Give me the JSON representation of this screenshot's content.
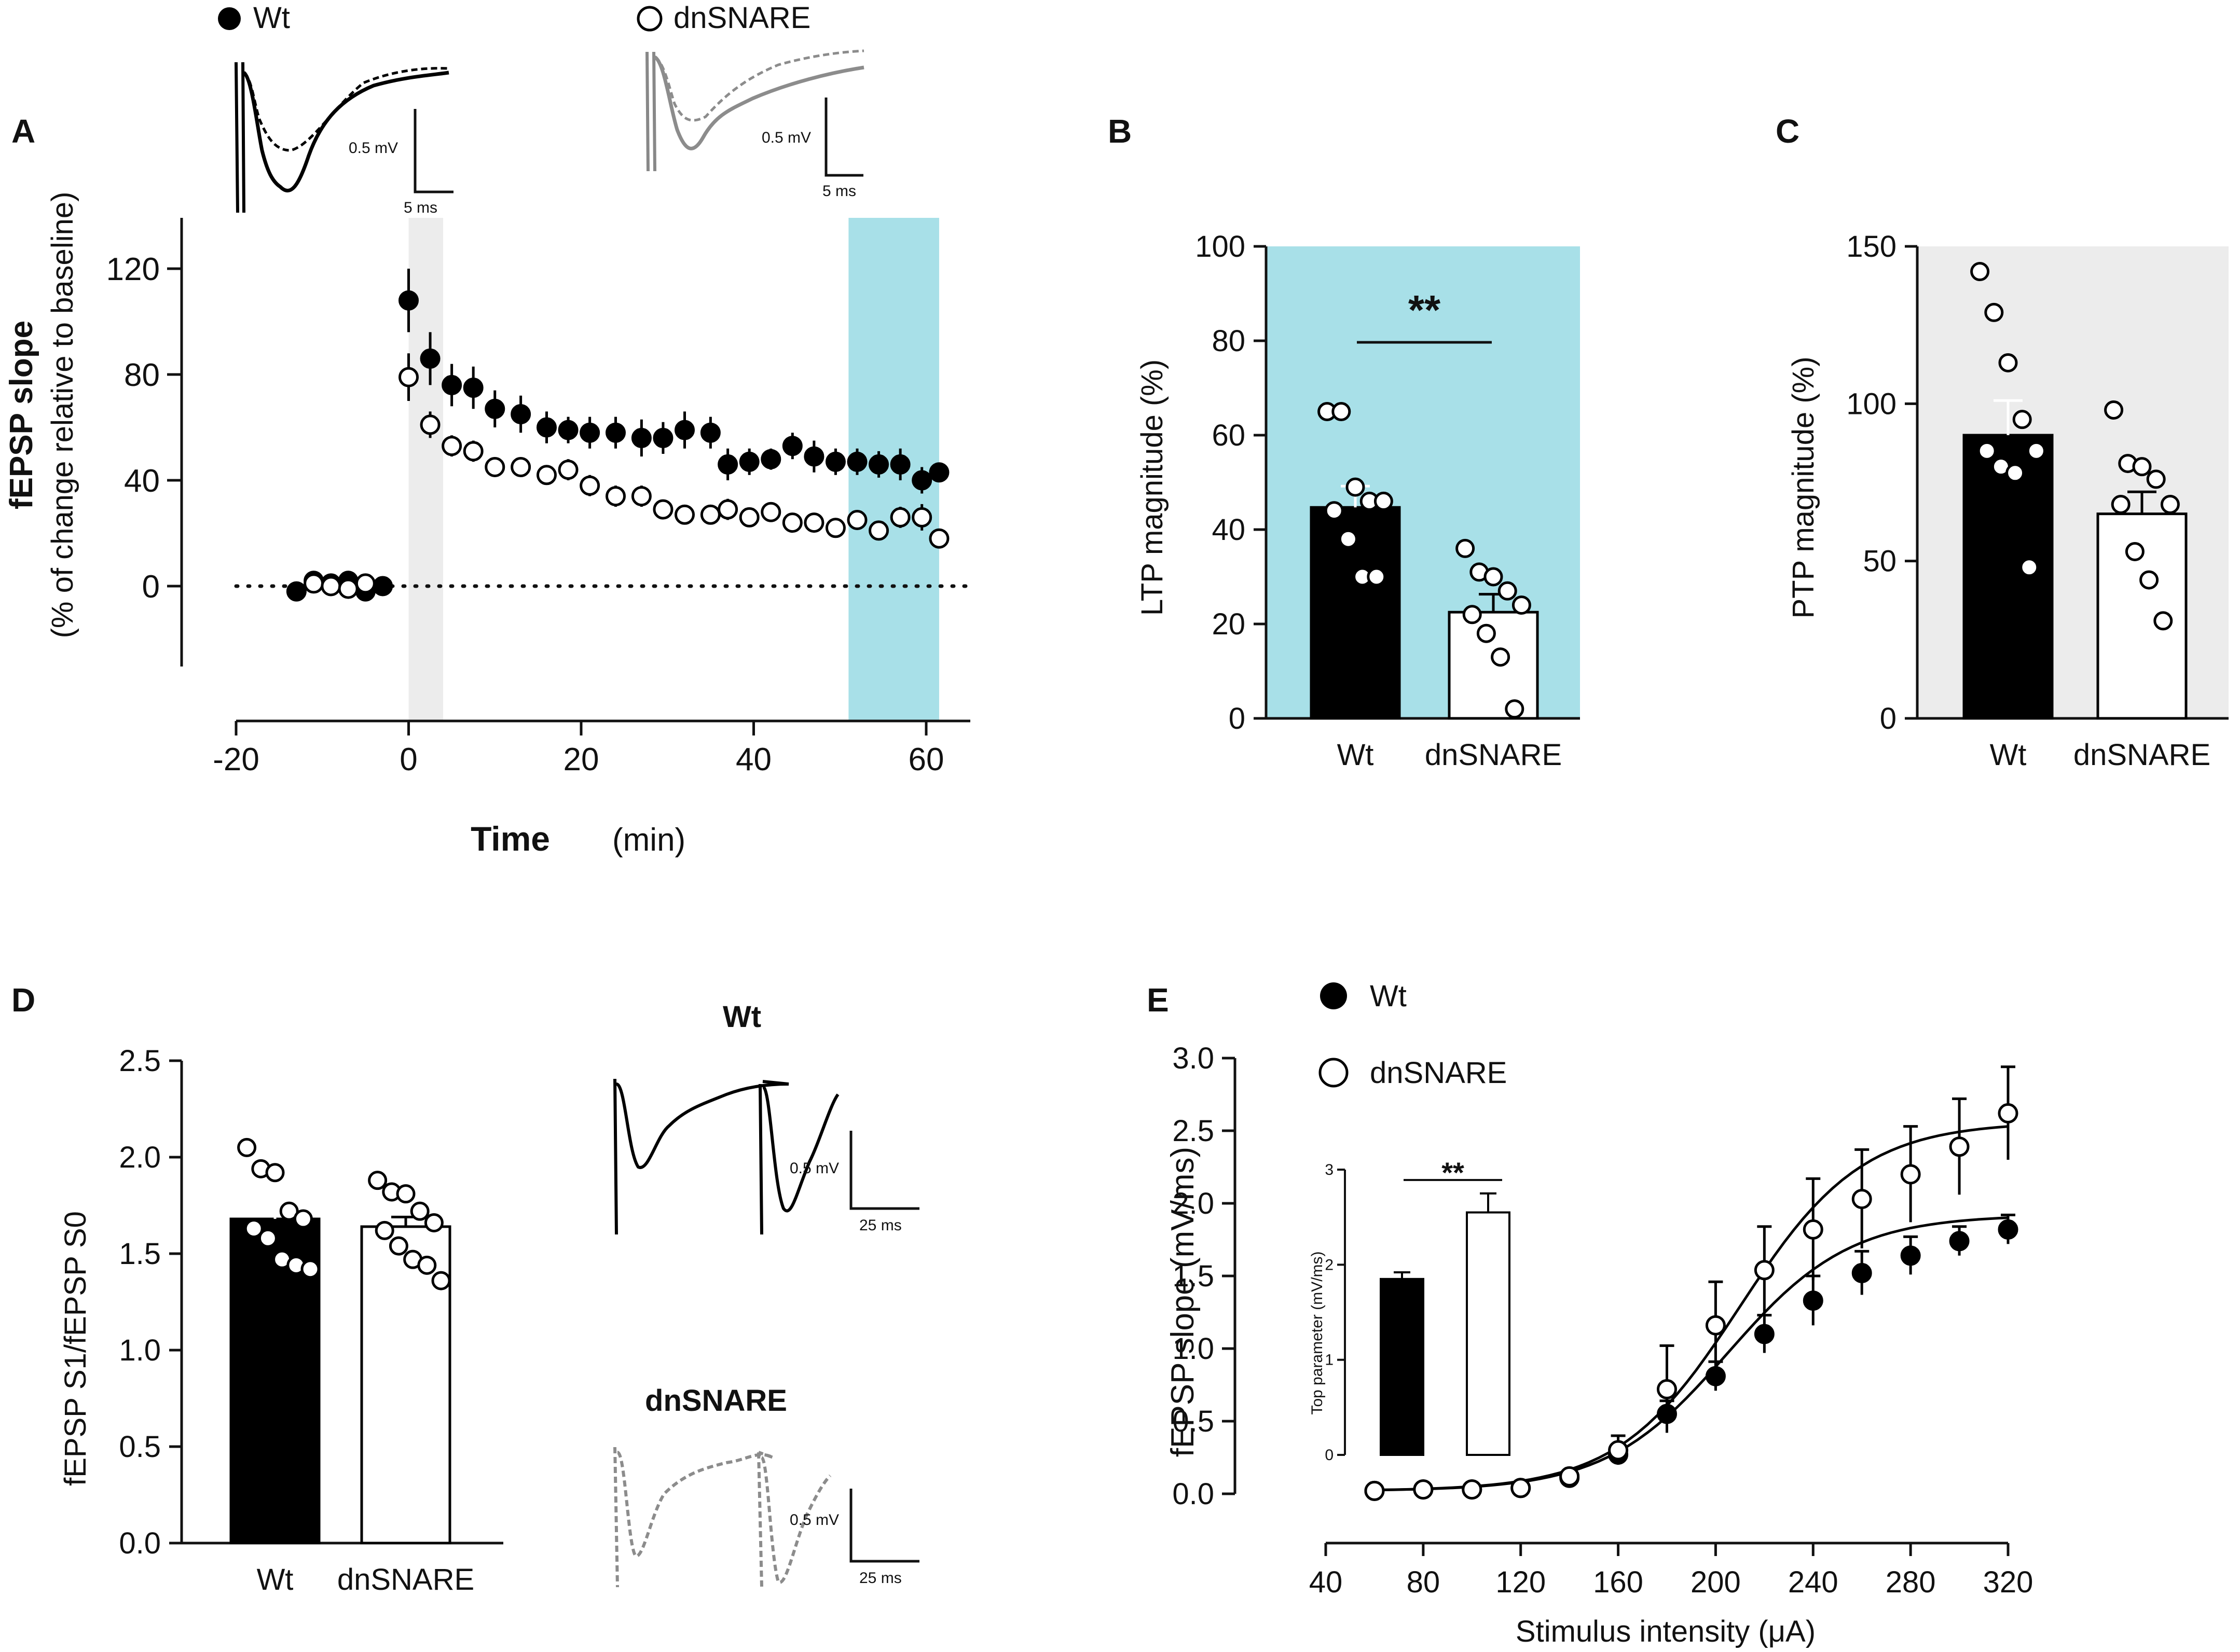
{
  "panels": {
    "A": {
      "letter": "A",
      "legend": [
        {
          "name": "Wt",
          "fill": "filled"
        },
        {
          "name": "dnSNARE",
          "fill": "open"
        }
      ],
      "trace_scale": {
        "wt_mv": "0.5 mV",
        "wt_ms": "5 ms",
        "dn_mv": "0.5 mV",
        "dn_ms": "5 ms"
      },
      "ylabel_bold": "fEPSP slope",
      "ylabel_sub": "(% of change relative to baseline)",
      "xlabel_bold": "Time",
      "xlabel_unit": "(min)",
      "x_ticks": [
        "-20",
        "0",
        "20",
        "40",
        "60"
      ],
      "y_ticks": [
        "0",
        "40",
        "80",
        "120"
      ]
    },
    "B": {
      "letter": "B",
      "ylabel": "LTP magnitude (%)",
      "significance": "**",
      "y_ticks": [
        "0",
        "20",
        "40",
        "60",
        "80",
        "100"
      ],
      "categories": [
        "Wt",
        "dnSNARE"
      ]
    },
    "C": {
      "letter": "C",
      "ylabel": "PTP magnitude (%)",
      "y_ticks": [
        "0",
        "50",
        "100",
        "150"
      ],
      "categories": [
        "Wt",
        "dnSNARE"
      ]
    },
    "D": {
      "letter": "D",
      "ylabel": "fEPSP S1/fEPSP S0",
      "y_ticks": [
        "0.0",
        "0.5",
        "1.0",
        "1.5",
        "2.0",
        "2.5"
      ],
      "categories": [
        "Wt",
        "dnSNARE"
      ],
      "trace_titles": {
        "wt": "Wt",
        "dn": "dnSNARE"
      },
      "trace_scale": {
        "wt_mv": "0.5 mV",
        "wt_ms": "25 ms",
        "dn_mv": "0.5 mV",
        "dn_ms": "25 ms"
      }
    },
    "E": {
      "letter": "E",
      "ylabel": "fEPSP slope (mV/ms)",
      "xlabel": "Stimulus intensity (μA)",
      "legend": [
        {
          "name": "Wt",
          "fill": "filled"
        },
        {
          "name": "dnSNARE",
          "fill": "open"
        }
      ],
      "x_ticks": [
        "40",
        "80",
        "120",
        "160",
        "200",
        "240",
        "280",
        "320"
      ],
      "y_ticks": [
        "0.0",
        "0.5",
        "1.0",
        "1.5",
        "2.0",
        "2.5",
        "3.0"
      ],
      "inset": {
        "ylabel": "Top parameter (mV/ms)",
        "y_ticks": [
          "0",
          "1",
          "2",
          "3"
        ],
        "significance": "**"
      }
    }
  },
  "colors": {
    "wt": "#000000",
    "dn": "#ffffff",
    "ltp_window": "#a8e0e8",
    "ptp_window": "#ececec",
    "dn_trace": "#8c8c8c"
  },
  "chart_data": [
    {
      "id": "A",
      "type": "scatter",
      "title": "",
      "xlabel": "Time (min)",
      "ylabel": "fEPSP slope (% of change relative to baseline)",
      "xlim": [
        -25,
        65
      ],
      "ylim": [
        -30,
        140
      ],
      "shaded_regions": [
        {
          "x": [
            0,
            4
          ],
          "color": "ptp_window"
        },
        {
          "x": [
            51,
            61.5
          ],
          "color": "ltp_window"
        }
      ],
      "series": [
        {
          "name": "Wt",
          "x": [
            -13,
            -11,
            -9,
            -7,
            -5,
            -3,
            0,
            2.5,
            5,
            7.5,
            10,
            13,
            16,
            18.5,
            21,
            24,
            27,
            29.5,
            32,
            35,
            37,
            39.5,
            42,
            44.5,
            47,
            49.5,
            52,
            54.5,
            57,
            59.5,
            61.5
          ],
          "y": [
            -2,
            2,
            1,
            2,
            -2,
            0,
            108,
            86,
            76,
            75,
            67,
            65,
            60,
            59,
            58,
            58,
            56,
            56,
            59,
            58,
            46,
            47,
            48,
            53,
            49,
            47,
            47,
            46,
            46,
            40,
            43
          ],
          "err": [
            1,
            1,
            1,
            1,
            1,
            1,
            12,
            10,
            8,
            8,
            7,
            7,
            6,
            5,
            6,
            6,
            7,
            6,
            7,
            6,
            6,
            5,
            4,
            5,
            6,
            5,
            5,
            5,
            6,
            5,
            3
          ]
        },
        {
          "name": "dnSNARE",
          "x": [
            -11,
            -9,
            -7,
            -5,
            0,
            2.5,
            5,
            7.5,
            10,
            13,
            16,
            18.5,
            21,
            24,
            27,
            29.5,
            32,
            35,
            37,
            39.5,
            42,
            44.5,
            47,
            49.5,
            52,
            54.5,
            57,
            59.5,
            61.5
          ],
          "y": [
            1,
            0,
            -1,
            1,
            79,
            61,
            53,
            51,
            45,
            45,
            42,
            44,
            38,
            34,
            34,
            29,
            27,
            27,
            29,
            26,
            28,
            24,
            24,
            22,
            25,
            21,
            26,
            26,
            18
          ],
          "err": [
            2,
            2,
            2,
            2,
            9,
            5,
            4,
            4,
            3,
            3,
            3,
            4,
            4,
            4,
            4,
            3,
            3,
            3,
            4,
            3,
            3,
            3,
            3,
            3,
            3,
            3,
            4,
            5,
            3
          ]
        }
      ]
    },
    {
      "id": "B",
      "type": "bar",
      "title": "",
      "ylabel": "LTP magnitude (%)",
      "ylim": [
        0,
        100
      ],
      "categories": [
        "Wt",
        "dnSNARE"
      ],
      "values": [
        44.7,
        22.5
      ],
      "sem": [
        4.5,
        3.8
      ],
      "points": [
        [
          65,
          65,
          49,
          46,
          46,
          44,
          38,
          30,
          30
        ],
        [
          36,
          31,
          30,
          27,
          24,
          22,
          18,
          13,
          2
        ]
      ],
      "significance": "**"
    },
    {
      "id": "C",
      "type": "bar",
      "title": "",
      "ylabel": "PTP magnitude (%)",
      "ylim": [
        0,
        150
      ],
      "categories": [
        "Wt",
        "dnSNARE"
      ],
      "values": [
        90,
        65
      ],
      "sem": [
        11,
        7
      ],
      "points": [
        [
          142,
          129,
          113,
          95,
          85,
          85,
          80,
          78,
          48
        ],
        [
          98,
          81,
          80,
          76,
          68,
          68,
          53,
          44,
          31
        ]
      ]
    },
    {
      "id": "D",
      "type": "bar",
      "title": "",
      "ylabel": "fEPSP S1/fEPSP S0",
      "ylim": [
        0,
        2.5
      ],
      "categories": [
        "Wt",
        "dnSNARE"
      ],
      "values": [
        1.68,
        1.64
      ],
      "sem": [
        0.06,
        0.05
      ],
      "points": [
        [
          2.05,
          1.94,
          1.92,
          1.72,
          1.68,
          1.63,
          1.58,
          1.47,
          1.44,
          1.42
        ],
        [
          1.88,
          1.82,
          1.81,
          1.72,
          1.66,
          1.62,
          1.54,
          1.47,
          1.44,
          1.36
        ]
      ]
    },
    {
      "id": "E",
      "type": "line",
      "title": "",
      "xlabel": "Stimulus intensity (μA)",
      "ylabel": "fEPSP slope (mV/ms)",
      "xlim": [
        40,
        320
      ],
      "ylim": [
        0,
        3
      ],
      "series": [
        {
          "name": "Wt",
          "x": [
            60,
            80,
            100,
            120,
            140,
            160,
            180,
            200,
            220,
            240,
            260,
            280,
            300,
            320
          ],
          "y": [
            0.02,
            0.03,
            0.03,
            0.04,
            0.11,
            0.27,
            0.55,
            0.81,
            1.1,
            1.33,
            1.52,
            1.64,
            1.74,
            1.82
          ],
          "err": [
            0.01,
            0.01,
            0.01,
            0.01,
            0.04,
            0.07,
            0.09,
            0.1,
            0.13,
            0.17,
            0.15,
            0.13,
            0.1,
            0.1
          ],
          "fit_top": 1.92,
          "fit_half": 205,
          "fit_slope": 25
        },
        {
          "name": "dnSNARE",
          "x": [
            60,
            80,
            100,
            120,
            140,
            160,
            180,
            200,
            220,
            240,
            260,
            280,
            300,
            320
          ],
          "y": [
            0.02,
            0.03,
            0.03,
            0.04,
            0.12,
            0.3,
            0.72,
            1.16,
            1.54,
            1.82,
            2.03,
            2.2,
            2.39,
            2.62
          ],
          "err": [
            0.01,
            0.01,
            0.01,
            0.01,
            0.03,
            0.1,
            0.3,
            0.3,
            0.3,
            0.35,
            0.34,
            0.33,
            0.33,
            0.32
          ],
          "fit_top": 2.56,
          "fit_half": 210,
          "fit_slope": 25
        }
      ],
      "inset": {
        "type": "bar",
        "categories": [
          "Wt",
          "dnSNARE"
        ],
        "values": [
          1.85,
          2.55
        ],
        "sem": [
          0.07,
          0.2
        ],
        "ylim": [
          0,
          3
        ],
        "ylabel": "Top parameter (mV/ms)",
        "significance": "**"
      }
    }
  ]
}
